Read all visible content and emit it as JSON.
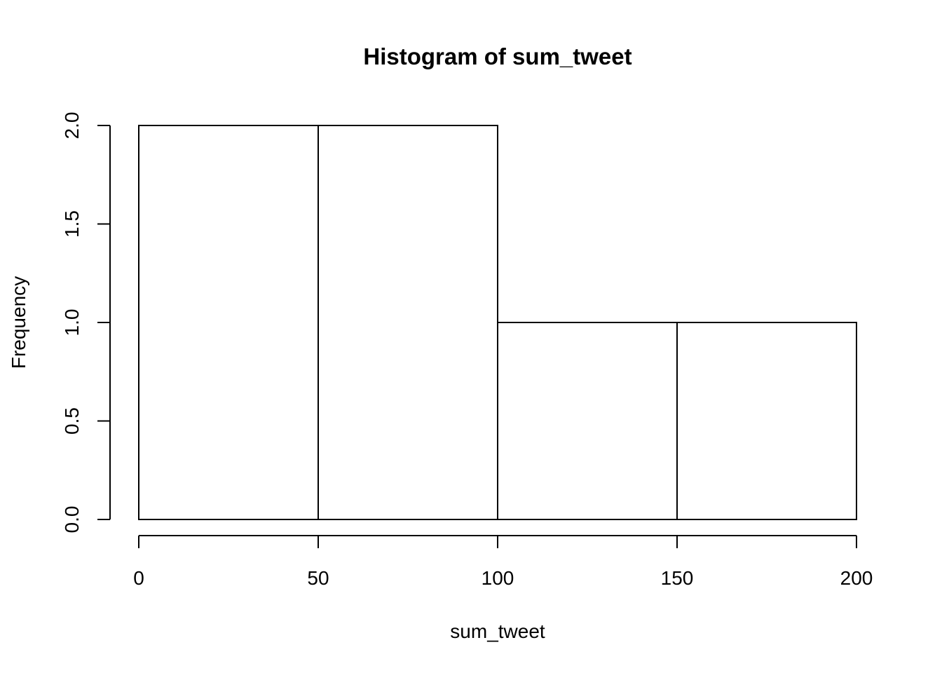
{
  "chart_data": {
    "type": "bar",
    "title": "Histogram of sum_tweet",
    "xlabel": "sum_tweet",
    "ylabel": "Frequency",
    "bins": [
      {
        "start": 0,
        "end": 50,
        "count": 2
      },
      {
        "start": 50,
        "end": 100,
        "count": 2
      },
      {
        "start": 100,
        "end": 150,
        "count": 1
      },
      {
        "start": 150,
        "end": 200,
        "count": 1
      }
    ],
    "xlim": [
      0,
      200
    ],
    "ylim": [
      0,
      2
    ],
    "xticks": [
      0,
      50,
      100,
      150,
      200
    ],
    "xtick_labels": [
      "0",
      "50",
      "100",
      "150",
      "200"
    ],
    "yticks": [
      0,
      0.5,
      1,
      1.5,
      2
    ],
    "ytick_labels": [
      "0.0",
      "0.5",
      "1.0",
      "1.5",
      "2.0"
    ],
    "grid": false,
    "colors": {
      "bar_fill": "#ffffff",
      "bar_stroke": "#000000"
    }
  }
}
